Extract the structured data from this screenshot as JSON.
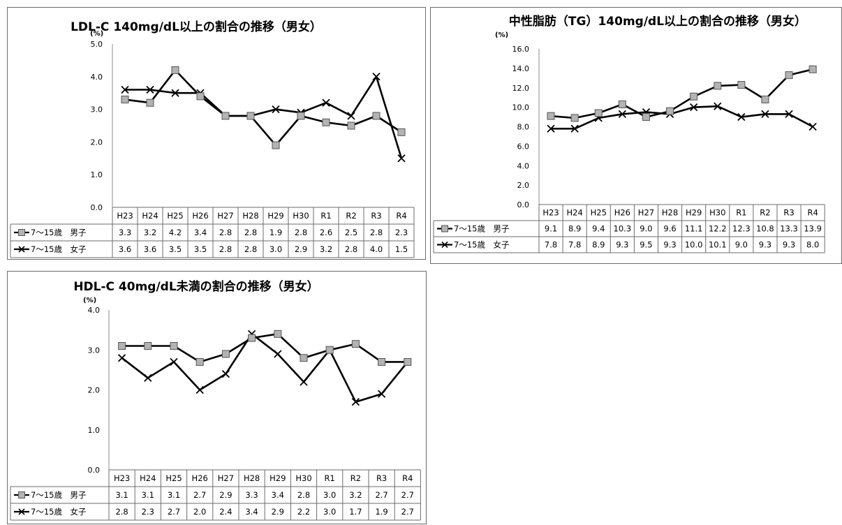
{
  "chart_data": [
    {
      "type": "line",
      "title": "LDL-C 140mg/dL以上の割合の推移（男女）",
      "unit": "(%)",
      "categories": [
        "H23",
        "H24",
        "H25",
        "H26",
        "H27",
        "H28",
        "H29",
        "H30",
        "R1",
        "R2",
        "R3",
        "R4"
      ],
      "ylim": [
        0,
        5
      ],
      "yticks": [
        "0.0",
        "1.0",
        "2.0",
        "3.0",
        "4.0",
        "5.0"
      ],
      "series": [
        {
          "name": "7～15歳　男子",
          "marker": "square",
          "values": [
            3.3,
            3.2,
            4.2,
            3.4,
            2.8,
            2.8,
            1.9,
            2.8,
            2.6,
            2.5,
            2.8,
            2.3
          ],
          "labels": [
            "3.3",
            "3.2",
            "4.2",
            "3.4",
            "2.8",
            "2.8",
            "1.9",
            "2.8",
            "2.6",
            "2.5",
            "2.8",
            "2.3"
          ]
        },
        {
          "name": "7～15歳　女子",
          "marker": "x",
          "values": [
            3.6,
            3.6,
            3.5,
            3.5,
            2.8,
            2.8,
            3.0,
            2.9,
            3.2,
            2.8,
            4.0,
            1.5
          ],
          "labels": [
            "3.6",
            "3.6",
            "3.5",
            "3.5",
            "2.8",
            "2.8",
            "3.0",
            "2.9",
            "3.2",
            "2.8",
            "4.0",
            "1.5"
          ]
        }
      ]
    },
    {
      "type": "line",
      "title": "中性脂肪（TG）140mg/dL以上の割合の推移（男女）",
      "unit": "(%)",
      "categories": [
        "H23",
        "H24",
        "H25",
        "H26",
        "H27",
        "H28",
        "H29",
        "H30",
        "R1",
        "R2",
        "R3",
        "R4"
      ],
      "ylim": [
        0,
        16
      ],
      "yticks": [
        "0.0",
        "2.0",
        "4.0",
        "6.0",
        "8.0",
        "10.0",
        "12.0",
        "14.0",
        "16.0"
      ],
      "series": [
        {
          "name": "7～15歳　男子",
          "marker": "square",
          "values": [
            9.1,
            8.9,
            9.4,
            10.3,
            9.0,
            9.6,
            11.1,
            12.2,
            12.3,
            10.8,
            13.3,
            13.9
          ],
          "labels": [
            "9.1",
            "8.9",
            "9.4",
            "10.3",
            "9.0",
            "9.6",
            "11.1",
            "12.2",
            "12.3",
            "10.8",
            "13.3",
            "13.9"
          ]
        },
        {
          "name": "7～15歳　女子",
          "marker": "x",
          "values": [
            7.8,
            7.8,
            8.9,
            9.3,
            9.5,
            9.3,
            10.0,
            10.1,
            9.0,
            9.3,
            9.3,
            8.0
          ],
          "labels": [
            "7.8",
            "7.8",
            "8.9",
            "9.3",
            "9.5",
            "9.3",
            "10.0",
            "10.1",
            "9.0",
            "9.3",
            "9.3",
            "8.0"
          ]
        }
      ]
    },
    {
      "type": "line",
      "title": "HDL-C 40mg/dL未満の割合の推移（男女）",
      "unit": "(%)",
      "categories": [
        "H23",
        "H24",
        "H25",
        "H26",
        "H27",
        "H28",
        "H29",
        "H30",
        "R1",
        "R2",
        "R3",
        "R4"
      ],
      "ylim": [
        0,
        4
      ],
      "yticks": [
        "0.0",
        "1.0",
        "2.0",
        "3.0",
        "4.0"
      ],
      "series": [
        {
          "name": "7～15歳　男子",
          "marker": "square",
          "values": [
            3.1,
            3.1,
            3.1,
            2.7,
            2.9,
            3.3,
            3.4,
            2.8,
            3.0,
            3.15,
            2.7,
            2.7
          ],
          "labels": [
            "3.1",
            "3.1",
            "3.1",
            "2.7",
            "2.9",
            "3.3",
            "3.4",
            "2.8",
            "3.0",
            "3.2",
            "2.7",
            "2.7"
          ]
        },
        {
          "name": "7～15歳　女子",
          "marker": "x",
          "values": [
            2.8,
            2.3,
            2.7,
            2.0,
            2.4,
            3.4,
            2.9,
            2.2,
            3.0,
            1.7,
            1.9,
            2.7
          ],
          "labels": [
            "2.8",
            "2.3",
            "2.7",
            "2.0",
            "2.4",
            "3.4",
            "2.9",
            "2.2",
            "3.0",
            "1.7",
            "1.9",
            "2.7"
          ]
        }
      ]
    }
  ],
  "colors": {
    "square_fill": "#b3b3b3",
    "line": "#000000",
    "border": "#6b6b6b",
    "axis": "#8c8c8c"
  }
}
